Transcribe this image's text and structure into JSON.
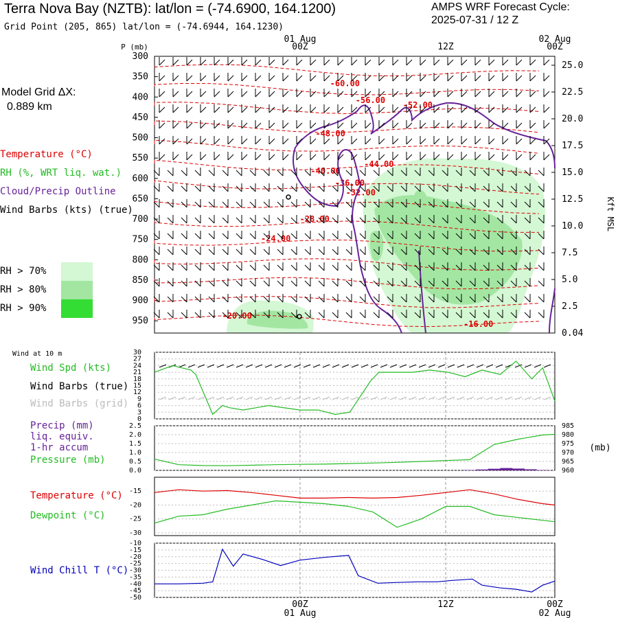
{
  "header": {
    "station_title": "Terra Nova Bay (NZTB):  lat/lon = (-74.6900, 164.1200)",
    "grid_point": "Grid Point (205, 865) lat/lon = (-74.6944, 164.1230)",
    "cycle_label": "AMPS WRF Forecast Cycle:",
    "cycle_value": "2025-07-31 / 12  Z"
  },
  "side": {
    "model_grid": "Model Grid ΔX:",
    "model_grid_value": "0.889 km",
    "legend_temperature": "Temperature (°C)",
    "legend_rh": "RH (%, WRT liq. wat.)",
    "legend_cloud": "Cloud/Precip Outline",
    "legend_wind": "Wind Barbs (kts) (true)",
    "rh70": "RH > 70%",
    "rh80": "RH > 80%",
    "rh90": "RH > 90%",
    "rh70_color": "#d4f7d4",
    "rh80_color": "#a2e6a2",
    "rh90_color": "#33dd33",
    "wind_at_10m": "Wind at 10 m",
    "wind_spd": "Wind Spd (kts)",
    "wind_barbs_true": "Wind Barbs (true)",
    "wind_barbs_grid": "Wind Barbs (grid)",
    "precip1": "Precip (mm)",
    "precip2": "liq. equiv.",
    "precip3": "1-hr accum",
    "pressure": "Pressure (mb)",
    "temp": "Temperature (°C)",
    "dewpoint": "Dewpoint (°C)",
    "windchill": "Wind Chill T (°C)"
  },
  "colors": {
    "temperature": "#dd0000",
    "green_series": "#22bb22",
    "cloud_outline": "#662299",
    "precip": "#662299",
    "windchill": "#0000bb",
    "grid_barbs": "#bbbbbb"
  },
  "chart_data": [
    {
      "type": "line",
      "panel": "cross-section",
      "xlabel_top": "01 Aug",
      "xticks": [
        "00Z",
        "12Z",
        "00Z"
      ],
      "xticks_date": [
        "01 Aug",
        "",
        "02 Aug"
      ],
      "x_hours_range": [
        -12,
        21
      ],
      "ylabel_left": "P (mb)",
      "yticks_left": [
        300,
        350,
        400,
        450,
        500,
        550,
        600,
        650,
        700,
        750,
        800,
        850,
        900,
        950
      ],
      "ylabel_right": "Kft MSL",
      "yticks_right": [
        "25.0",
        "22.5",
        "20.0",
        "17.5",
        "15.0",
        "12.5",
        "10.0",
        "7.5",
        "5.0",
        "2.5",
        "0.04"
      ],
      "isotherm_labels": [
        {
          "text": "-60.00",
          "hour": 3.7,
          "p": 367
        },
        {
          "text": "-56.00",
          "hour": 5.8,
          "p": 408
        },
        {
          "text": "-52.00",
          "hour": 9.7,
          "p": 420
        },
        {
          "text": "-48.00",
          "hour": 2.5,
          "p": 490
        },
        {
          "text": "-44.00",
          "hour": 6.5,
          "p": 565
        },
        {
          "text": "-40.00",
          "hour": 2.1,
          "p": 582
        },
        {
          "text": "-36.00",
          "hour": 4.1,
          "p": 611
        },
        {
          "text": "-32.00",
          "hour": 5.0,
          "p": 635
        },
        {
          "text": "-28.00",
          "hour": 1.2,
          "p": 700
        },
        {
          "text": "-24.00",
          "hour": -2.0,
          "p": 748
        },
        {
          "text": "-20.00",
          "hour": -5.2,
          "p": 938
        },
        {
          "text": "-16.00",
          "hour": 14.7,
          "p": 958
        }
      ],
      "rh_levels": [
        "RH > 70%",
        "RH > 80%",
        "RH > 90%"
      ]
    },
    {
      "type": "line",
      "panel": "wind",
      "title": "Wind at 10 m",
      "yticks": [
        0,
        3,
        6,
        9,
        12,
        15,
        18,
        21,
        24,
        27,
        30
      ],
      "ylim": [
        0,
        30
      ],
      "series": [
        {
          "name": "Wind Spd (kts)",
          "color": "#22bb22",
          "x": [
            -12,
            -10.5,
            -9,
            -8.6,
            -7.2,
            -6.4,
            -5.8,
            -4.7,
            -2.6,
            0,
            1.5,
            2.9,
            4.1,
            5.8,
            6.5,
            7.9,
            9.3,
            10.7,
            12.2,
            13.6,
            15,
            16.5,
            17.8,
            19.1,
            20,
            21
          ],
          "values": [
            21,
            24,
            22,
            20,
            2,
            6,
            5,
            4,
            6,
            4,
            4,
            2,
            3,
            17,
            21,
            21,
            21,
            22,
            21,
            19,
            22,
            20,
            26,
            18,
            23,
            8
          ]
        }
      ]
    },
    {
      "type": "line",
      "panel": "precip-pressure",
      "yticks_left": [
        0.0,
        0.5,
        1.0,
        1.5,
        2.0,
        2.5
      ],
      "ylim_left": [
        0,
        2.5
      ],
      "yticks_right": [
        960,
        965,
        970,
        975,
        980,
        985
      ],
      "ylim_right": [
        960,
        985
      ],
      "ylabel_right": "(mb)",
      "series": [
        {
          "name": "Pressure (mb)",
          "axis": "right",
          "color": "#22bb22",
          "x": [
            -12,
            -10,
            -8,
            -6,
            -4,
            -2,
            0,
            2,
            4,
            6,
            8,
            10,
            12,
            14,
            16,
            18,
            20,
            21
          ],
          "values": [
            966.3,
            963.2,
            962.7,
            962.6,
            962.9,
            963.2,
            963.4,
            963.5,
            963.8,
            964.1,
            964.5,
            965,
            965.5,
            966,
            974.5,
            977.5,
            979.8,
            980.2
          ]
        },
        {
          "name": "Precip (mm)",
          "axis": "left",
          "color": "#662299",
          "x": [
            14,
            15,
            16,
            17,
            18,
            19,
            20
          ],
          "values": [
            0.02,
            0.05,
            0.09,
            0.13,
            0.1,
            0.06,
            0.02
          ]
        }
      ]
    },
    {
      "type": "line",
      "panel": "temperature",
      "yticks": [
        -15,
        -20,
        -25,
        -30
      ],
      "ylim": [
        -31,
        -10
      ],
      "series": [
        {
          "name": "Temperature (°C)",
          "color": "#dd0000",
          "x": [
            -12,
            -10,
            -8,
            -6,
            -4,
            -2,
            0,
            2,
            4,
            6,
            8,
            10,
            12,
            14,
            16,
            18,
            20,
            21
          ],
          "values": [
            -15.5,
            -14.5,
            -15,
            -14.8,
            -15.5,
            -16.5,
            -17.5,
            -17.5,
            -17.3,
            -17.5,
            -17.3,
            -16.5,
            -15.5,
            -14.5,
            -16,
            -18,
            -19.5,
            -20
          ]
        },
        {
          "name": "Dewpoint (°C)",
          "color": "#22bb22",
          "x": [
            -12,
            -10,
            -8,
            -6,
            -4,
            -2,
            0,
            2,
            4,
            6,
            8,
            10,
            12,
            14,
            16,
            18,
            20,
            21
          ],
          "values": [
            -26.5,
            -24,
            -23.5,
            -21.5,
            -20,
            -18.5,
            -19,
            -19.5,
            -20.5,
            -22.5,
            -28,
            -25,
            -20.5,
            -20.5,
            -23.5,
            -24.5,
            -25.5,
            -26
          ]
        }
      ]
    },
    {
      "type": "line",
      "panel": "windchill",
      "yticks": [
        -10,
        -15,
        -20,
        -25,
        -30,
        -35,
        -40,
        -45,
        -50
      ],
      "ylim": [
        -50,
        -10
      ],
      "series": [
        {
          "name": "Wind Chill T (°C)",
          "color": "#0000bb",
          "x": [
            -12,
            -10,
            -8,
            -7.2,
            -6.4,
            -5.5,
            -4.7,
            -3.1,
            -1.6,
            0,
            2,
            4,
            4.8,
            6.4,
            7.9,
            9.7,
            11.3,
            12.5,
            14.2,
            15,
            16.5,
            17.8,
            19.1,
            20,
            21
          ],
          "values": [
            -40,
            -40,
            -39.5,
            -38.5,
            -14.5,
            -27,
            -18,
            -22,
            -26.5,
            -22.5,
            -20.5,
            -19,
            -34,
            -39.5,
            -39,
            -38.5,
            -38.5,
            -37.5,
            -36.5,
            -41,
            -43,
            -44,
            -46,
            -41,
            -38
          ]
        }
      ]
    }
  ]
}
